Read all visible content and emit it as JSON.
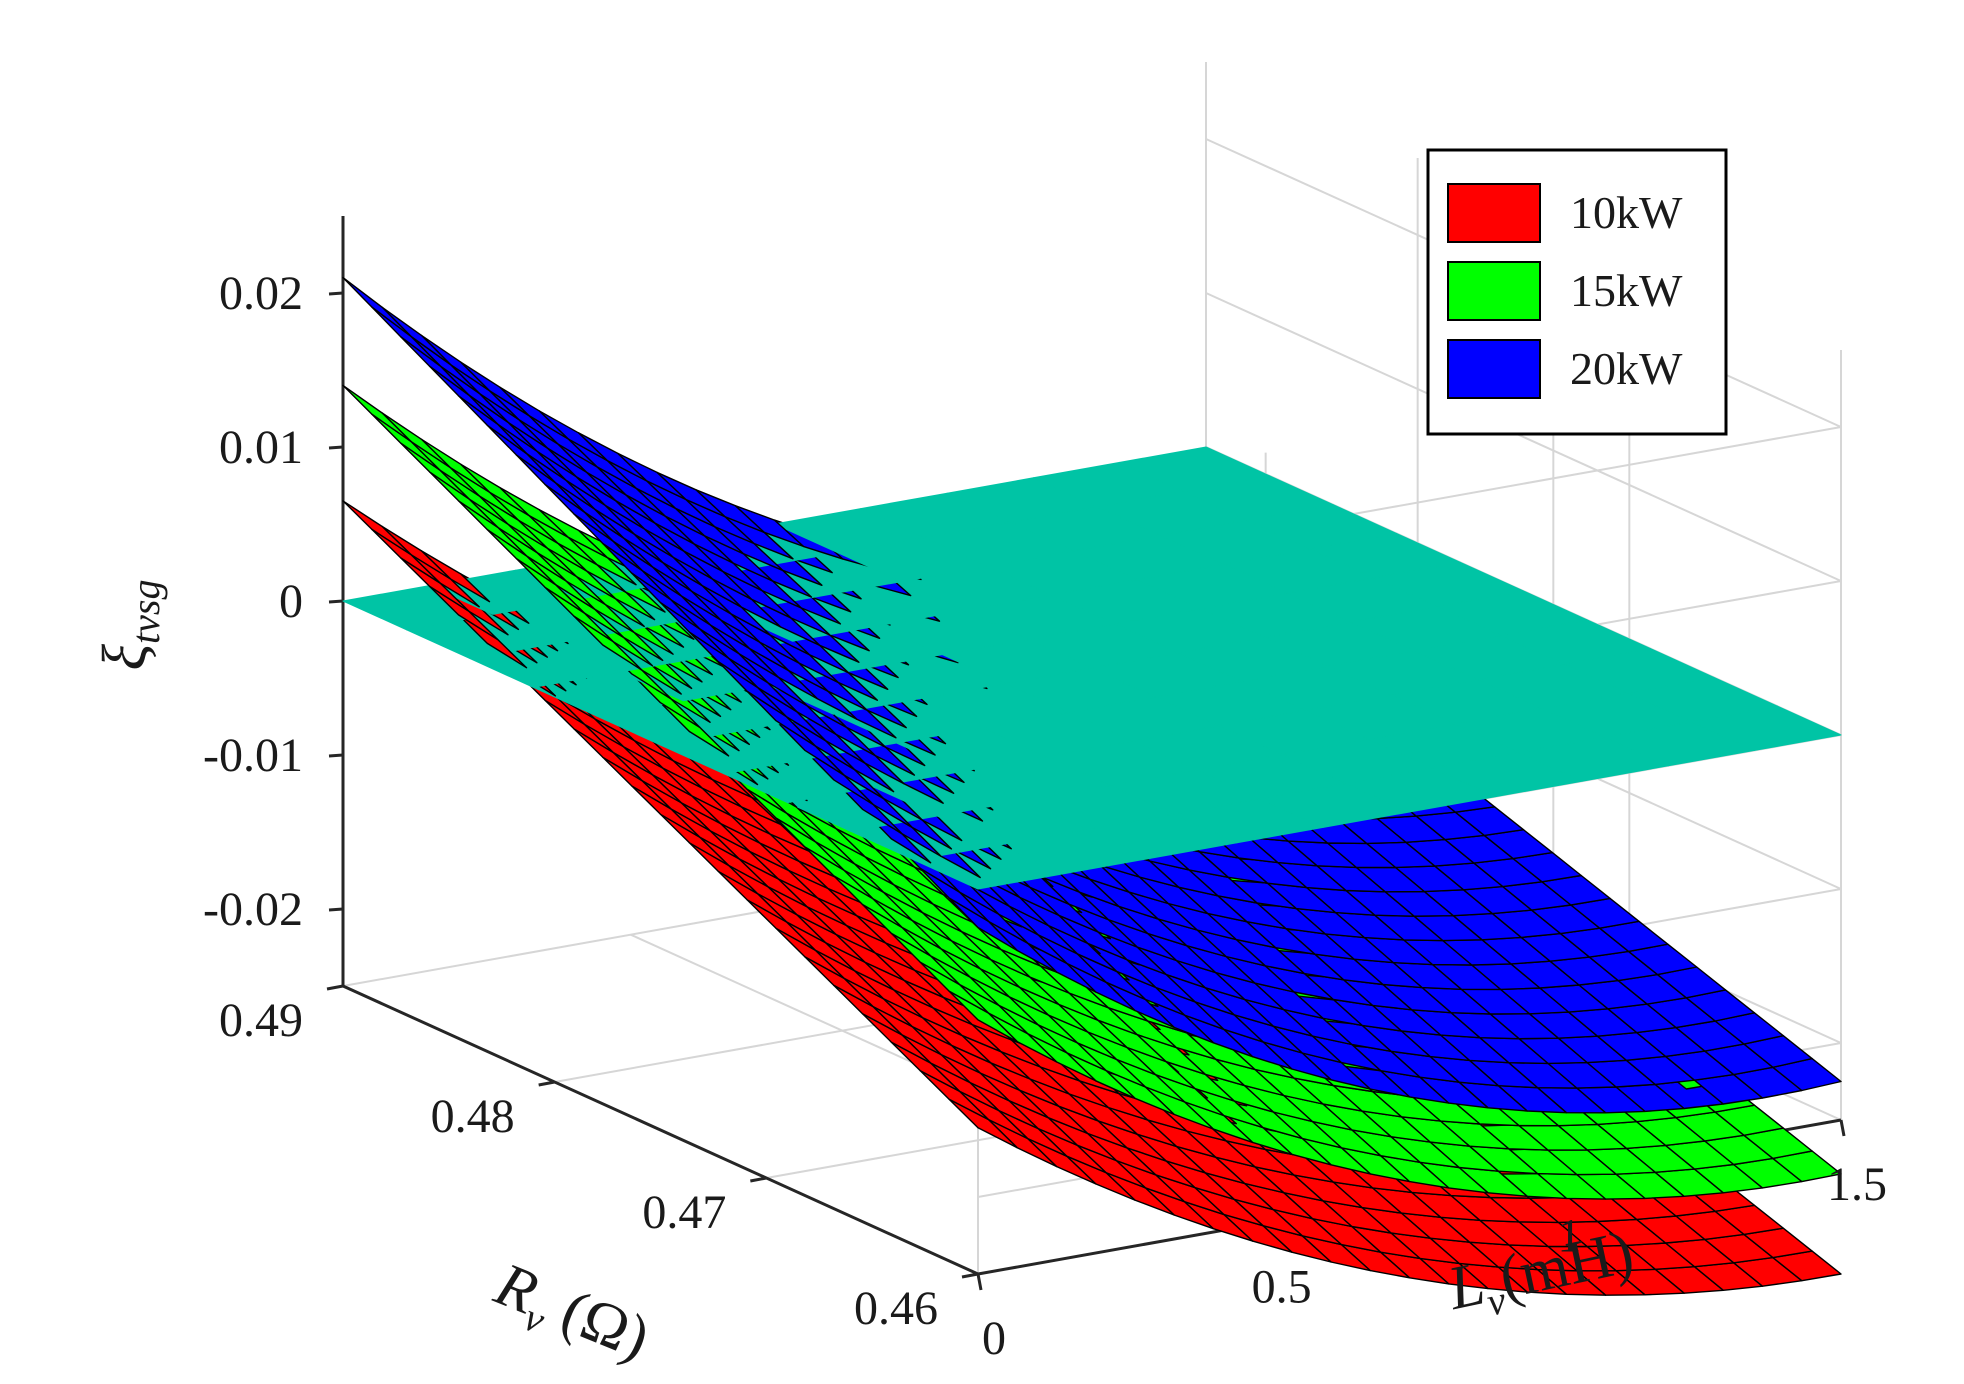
{
  "chart_data": {
    "type": "surface3d",
    "title": "",
    "xlabel": {
      "base": "R",
      "sub": "v",
      "unit": " (Ω)"
    },
    "ylabel": {
      "base": "L",
      "sub": "v",
      "unit": "(mH)"
    },
    "zlabel": {
      "base": "ξ",
      "sub": "tvsg"
    },
    "x_ticks": [
      "0.46",
      "0.47",
      "0.48",
      "0.49"
    ],
    "y_ticks": [
      "0",
      "0.5",
      "1",
      "1.5"
    ],
    "z_ticks": [
      "-0.02",
      "-0.01",
      "0",
      "0.01",
      "0.02"
    ],
    "xlim": [
      0.46,
      0.49
    ],
    "ylim": [
      0,
      1.5
    ],
    "zlim": [
      -0.025,
      0.025
    ],
    "grid": true,
    "legend_position": "top-right",
    "zero_plane": {
      "z": 0,
      "color": "#00c4a5"
    },
    "series": [
      {
        "name": "10kW",
        "color": "#ff0000",
        "z_at_Lmin_Rmax": 0.0065,
        "z_at_Lmin_Rmin": -0.0155,
        "z_at_Lmax_Rmax": -0.021,
        "z_at_Lmax_Rmin": -0.035,
        "L_curvature": -0.02
      },
      {
        "name": "15kW",
        "color": "#00ff00",
        "z_at_Lmin_Rmax": 0.014,
        "z_at_Lmin_Rmin": -0.0085,
        "z_at_Lmax_Rmax": -0.0145,
        "z_at_Lmax_Rmin": -0.0285,
        "L_curvature": -0.022
      },
      {
        "name": "20kW",
        "color": "#0000ff",
        "z_at_Lmin_Rmax": 0.021,
        "z_at_Lmin_Rmin": -0.0025,
        "z_at_Lmax_Rmax": -0.0085,
        "z_at_Lmax_Rmin": -0.0225,
        "L_curvature": -0.024
      }
    ]
  }
}
